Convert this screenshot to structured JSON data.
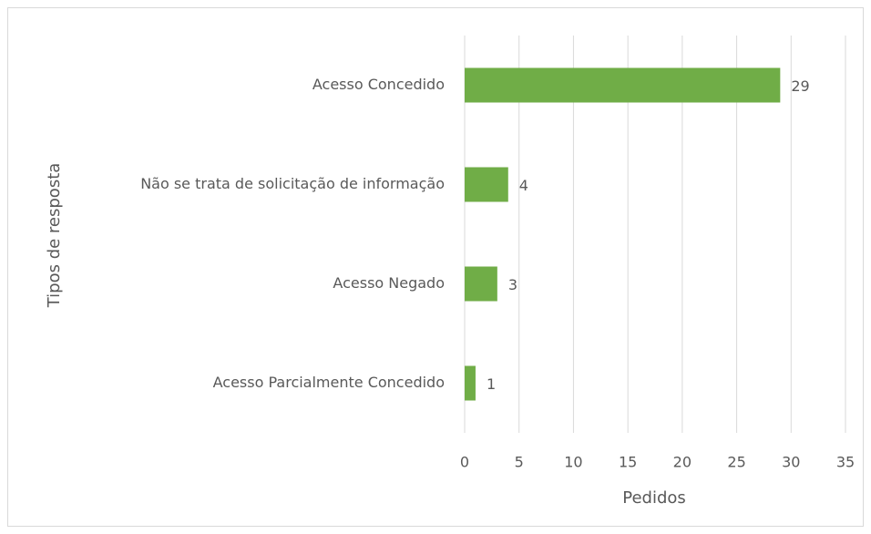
{
  "chart_data": {
    "type": "bar",
    "orientation": "horizontal",
    "x_label": "Pedidos",
    "y_label": "Tipos de resposta",
    "categories": [
      "Acesso Concedido",
      "Não se trata de solicitação de informação",
      "Acesso Negado",
      "Acesso Parcialmente Concedido"
    ],
    "values": [
      29,
      4,
      3,
      1
    ],
    "color": "#70ad47",
    "xlim": [
      0,
      35
    ],
    "xticks": [
      0,
      5,
      10,
      15,
      20,
      25,
      30,
      35
    ],
    "grid": true
  }
}
